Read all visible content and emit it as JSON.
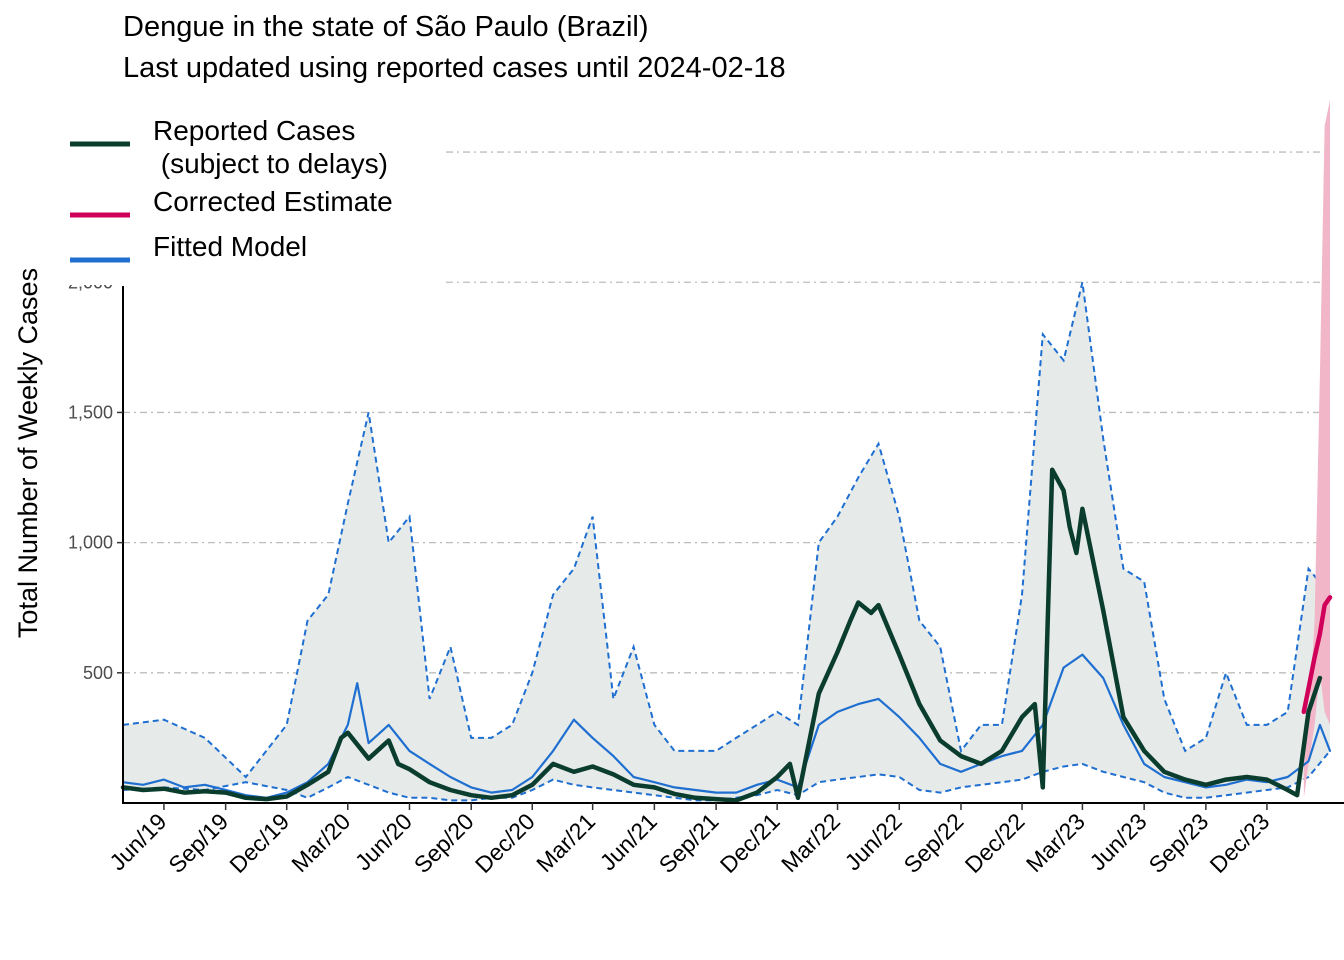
{
  "chart_data": {
    "type": "line",
    "title": "Dengue in the state of São Paulo (Brazil)",
    "subtitle": "Last updated using reported cases until 2024-02-18",
    "xlabel": "",
    "ylabel": "Total Number of Weekly Cases",
    "xlim": [
      "2019-04-01",
      "2024-03-04"
    ],
    "ylim": [
      0,
      2700
    ],
    "x_ticks": [
      "2019-06-01",
      "2019-09-01",
      "2019-12-01",
      "2020-03-01",
      "2020-06-01",
      "2020-09-01",
      "2020-12-01",
      "2021-03-01",
      "2021-06-01",
      "2021-09-01",
      "2021-12-01",
      "2022-03-01",
      "2022-06-01",
      "2022-09-01",
      "2022-12-01",
      "2023-03-01",
      "2023-06-01",
      "2023-09-01",
      "2023-12-01"
    ],
    "x_tick_labels": [
      "Jun/19",
      "Sep/19",
      "Dec/19",
      "Mar/20",
      "Jun/20",
      "Sep/20",
      "Dec/20",
      "Mar/21",
      "Jun/21",
      "Sep/21",
      "Dec/21",
      "Mar/22",
      "Jun/22",
      "Sep/22",
      "Dec/22",
      "Mar/23",
      "Jun/23",
      "Sep/23",
      "Dec/23"
    ],
    "y_ticks": [
      500,
      1000,
      1500,
      2000
    ],
    "y_tick_labels": [
      "500",
      "1,000",
      "1,500",
      "2,000"
    ],
    "grid": "horizontal dash-dot",
    "legend_position": "top-left",
    "colors": {
      "reported": "#0b3d2e",
      "corrected": "#d0005a",
      "corrected_band": "#f2b6c9",
      "fitted": "#1f6fd1",
      "band": "#e6eae9"
    },
    "legend": [
      {
        "key": "reported",
        "label_lines": [
          "Reported Cases",
          " (subject to delays)"
        ]
      },
      {
        "key": "corrected",
        "label_lines": [
          "Corrected Estimate"
        ]
      },
      {
        "key": "fitted",
        "label_lines": [
          "Fitted Model"
        ]
      }
    ],
    "series": [
      {
        "key": "reported",
        "x": [
          "2019-04-01",
          "2019-05-01",
          "2019-06-01",
          "2019-07-01",
          "2019-08-01",
          "2019-09-01",
          "2019-10-01",
          "2019-11-01",
          "2019-12-01",
          "2020-01-01",
          "2020-02-01",
          "2020-02-20",
          "2020-03-01",
          "2020-04-01",
          "2020-05-01",
          "2020-05-15",
          "2020-06-01",
          "2020-07-01",
          "2020-08-01",
          "2020-09-01",
          "2020-10-01",
          "2020-11-01",
          "2020-12-01",
          "2021-01-01",
          "2021-02-01",
          "2021-03-01",
          "2021-04-01",
          "2021-05-01",
          "2021-06-01",
          "2021-07-01",
          "2021-08-01",
          "2021-09-01",
          "2021-10-01",
          "2021-11-01",
          "2021-12-01",
          "2021-12-20",
          "2022-01-01",
          "2022-02-01",
          "2022-03-01",
          "2022-03-20",
          "2022-04-01",
          "2022-04-20",
          "2022-05-01",
          "2022-06-01",
          "2022-07-01",
          "2022-08-01",
          "2022-09-01",
          "2022-10-01",
          "2022-11-01",
          "2022-12-01",
          "2022-12-20",
          "2023-01-01",
          "2023-01-15",
          "2023-02-01",
          "2023-02-10",
          "2023-02-20",
          "2023-03-01",
          "2023-04-01",
          "2023-05-01",
          "2023-06-01",
          "2023-07-01",
          "2023-08-01",
          "2023-09-01",
          "2023-10-01",
          "2023-11-01",
          "2023-12-01",
          "2024-01-01",
          "2024-01-15",
          "2024-02-01",
          "2024-02-18"
        ],
        "values": [
          60,
          50,
          55,
          40,
          45,
          40,
          20,
          15,
          25,
          70,
          120,
          250,
          270,
          170,
          240,
          150,
          130,
          80,
          50,
          30,
          20,
          30,
          70,
          150,
          120,
          140,
          110,
          70,
          60,
          35,
          20,
          15,
          10,
          40,
          100,
          150,
          20,
          420,
          580,
          700,
          770,
          730,
          760,
          570,
          380,
          240,
          180,
          150,
          200,
          330,
          380,
          60,
          1280,
          1200,
          1060,
          960,
          1130,
          740,
          330,
          200,
          120,
          90,
          70,
          90,
          100,
          90,
          50,
          30,
          350,
          480
        ]
      },
      {
        "key": "corrected",
        "x": [
          "2024-01-25",
          "2024-02-01",
          "2024-02-10",
          "2024-02-18",
          "2024-02-25",
          "2024-03-04"
        ],
        "values": [
          350,
          440,
          560,
          650,
          760,
          790
        ]
      },
      {
        "key": "fitted",
        "x": [
          "2019-04-01",
          "2019-05-01",
          "2019-06-01",
          "2019-07-01",
          "2019-08-01",
          "2019-09-01",
          "2019-10-01",
          "2019-11-01",
          "2019-12-01",
          "2020-01-01",
          "2020-02-01",
          "2020-03-01",
          "2020-03-15",
          "2020-04-01",
          "2020-05-01",
          "2020-06-01",
          "2020-07-01",
          "2020-08-01",
          "2020-09-01",
          "2020-10-01",
          "2020-11-01",
          "2020-12-01",
          "2021-01-01",
          "2021-02-01",
          "2021-03-01",
          "2021-04-01",
          "2021-05-01",
          "2021-06-01",
          "2021-07-01",
          "2021-08-01",
          "2021-09-01",
          "2021-10-01",
          "2021-11-01",
          "2021-12-01",
          "2022-01-01",
          "2022-02-01",
          "2022-03-01",
          "2022-04-01",
          "2022-05-01",
          "2022-06-01",
          "2022-07-01",
          "2022-08-01",
          "2022-09-01",
          "2022-10-01",
          "2022-11-01",
          "2022-12-01",
          "2023-01-01",
          "2023-02-01",
          "2023-03-01",
          "2023-04-01",
          "2023-05-01",
          "2023-06-01",
          "2023-07-01",
          "2023-08-01",
          "2023-09-01",
          "2023-10-01",
          "2023-11-01",
          "2023-12-01",
          "2024-01-01",
          "2024-02-01",
          "2024-02-18",
          "2024-03-04"
        ],
        "values": [
          80,
          70,
          90,
          60,
          70,
          50,
          30,
          20,
          40,
          80,
          150,
          300,
          460,
          230,
          300,
          200,
          150,
          100,
          60,
          40,
          50,
          100,
          200,
          320,
          250,
          180,
          100,
          80,
          60,
          50,
          40,
          40,
          70,
          90,
          60,
          300,
          350,
          380,
          400,
          330,
          250,
          150,
          120,
          150,
          180,
          200,
          300,
          520,
          570,
          480,
          300,
          150,
          100,
          80,
          60,
          70,
          90,
          80,
          100,
          160,
          300,
          200
        ]
      }
    ],
    "band": {
      "key": "fitted",
      "x": [
        "2019-04-01",
        "2019-06-01",
        "2019-08-01",
        "2019-10-01",
        "2019-12-01",
        "2020-01-01",
        "2020-02-01",
        "2020-03-01",
        "2020-04-01",
        "2020-05-01",
        "2020-06-01",
        "2020-07-01",
        "2020-08-01",
        "2020-09-01",
        "2020-10-01",
        "2020-11-01",
        "2020-12-01",
        "2021-01-01",
        "2021-02-01",
        "2021-03-01",
        "2021-04-01",
        "2021-05-01",
        "2021-06-01",
        "2021-07-01",
        "2021-08-01",
        "2021-09-01",
        "2021-10-01",
        "2021-11-01",
        "2021-12-01",
        "2022-01-01",
        "2022-02-01",
        "2022-03-01",
        "2022-04-01",
        "2022-05-01",
        "2022-06-01",
        "2022-07-01",
        "2022-08-01",
        "2022-09-01",
        "2022-10-01",
        "2022-11-01",
        "2022-12-01",
        "2023-01-01",
        "2023-02-01",
        "2023-03-01",
        "2023-04-01",
        "2023-05-01",
        "2023-06-01",
        "2023-07-01",
        "2023-08-01",
        "2023-09-01",
        "2023-10-01",
        "2023-11-01",
        "2023-12-01",
        "2024-01-01",
        "2024-02-01",
        "2024-03-04"
      ],
      "upper": [
        300,
        320,
        250,
        100,
        300,
        700,
        800,
        1150,
        1500,
        1000,
        1100,
        400,
        600,
        250,
        250,
        300,
        500,
        800,
        900,
        1100,
        400,
        600,
        300,
        200,
        200,
        200,
        250,
        300,
        350,
        300,
        1000,
        1100,
        1250,
        1380,
        1100,
        700,
        600,
        200,
        300,
        300,
        800,
        1800,
        1700,
        2000,
        1400,
        900,
        850,
        400,
        200,
        250,
        500,
        300,
        300,
        350,
        900,
        800
      ],
      "lower": [
        50,
        60,
        50,
        80,
        50,
        20,
        60,
        100,
        70,
        40,
        20,
        20,
        10,
        10,
        20,
        20,
        50,
        90,
        70,
        60,
        50,
        40,
        30,
        20,
        10,
        10,
        20,
        30,
        50,
        30,
        80,
        90,
        100,
        110,
        100,
        50,
        40,
        60,
        70,
        80,
        90,
        120,
        140,
        150,
        120,
        100,
        80,
        40,
        20,
        20,
        30,
        40,
        50,
        60,
        100,
        200
      ]
    },
    "corrected_band": {
      "x": [
        "2024-01-25",
        "2024-02-01",
        "2024-02-10",
        "2024-02-18",
        "2024-02-25",
        "2024-03-04"
      ],
      "upper": [
        150,
        300,
        700,
        1650,
        2600,
        2700
      ],
      "lower": [
        20,
        150,
        300,
        500,
        350,
        300
      ]
    }
  }
}
